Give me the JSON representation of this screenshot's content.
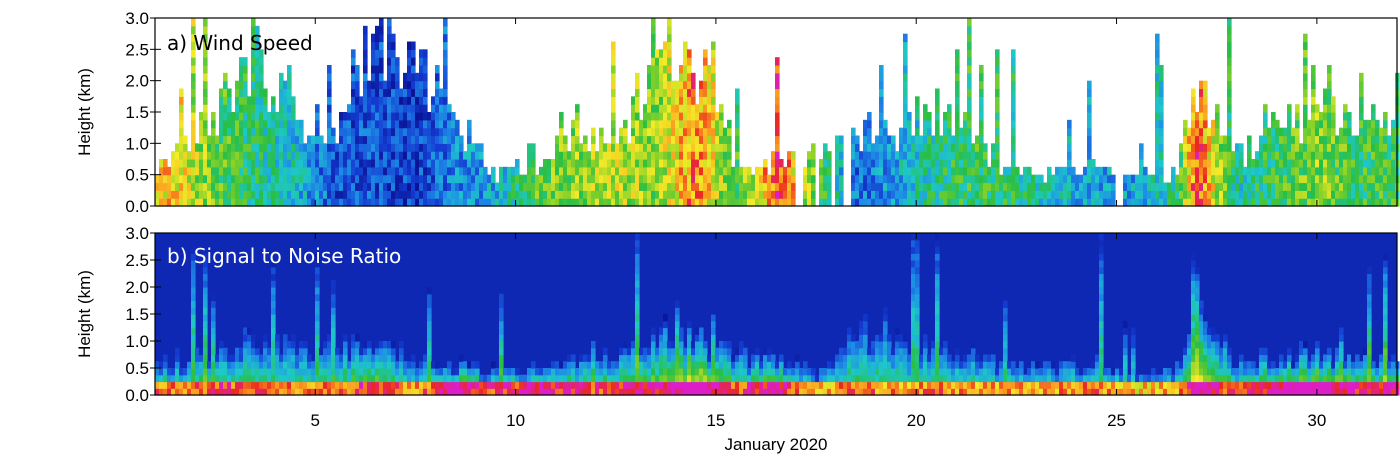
{
  "chart_data": {
    "type": "heatmap",
    "xlabel": "January 2020",
    "x_ticks": [
      5,
      10,
      15,
      20,
      25,
      30
    ],
    "xlim": [
      1,
      32
    ],
    "panels": [
      {
        "id": "wind",
        "label": "a) Wind Speed",
        "ylabel": "Height (km)",
        "ylim": [
          0,
          3
        ],
        "y_ticks": [
          "0.0",
          "0.5",
          "1.0",
          "1.5",
          "2.0",
          "2.5",
          "3.0"
        ],
        "colormap": "rainbow",
        "data_gaps_day": [
          [
            17.0,
            17.15
          ],
          [
            17.5,
            17.6
          ],
          [
            17.85,
            17.95
          ],
          [
            18.15,
            18.35
          ],
          [
            25.0,
            25.2
          ]
        ],
        "grid": [
          {
            "x": 1.5,
            "top_km": 0.7,
            "level": 0.75
          },
          {
            "x": 2.5,
            "top_km": 1.4,
            "level": 0.55
          },
          {
            "x": 3.5,
            "top_km": 2.4,
            "level": 0.45
          },
          {
            "x": 4.5,
            "top_km": 1.3,
            "level": 0.35
          },
          {
            "x": 5.5,
            "top_km": 1.2,
            "level": 0.15
          },
          {
            "x": 6.5,
            "top_km": 2.9,
            "level": 0.15
          },
          {
            "x": 7.5,
            "top_km": 2.0,
            "level": 0.1
          },
          {
            "x": 8.5,
            "top_km": 1.5,
            "level": 0.25
          },
          {
            "x": 9.5,
            "top_km": 0.4,
            "level": 0.3
          },
          {
            "x": 10.5,
            "top_km": 0.6,
            "level": 0.55
          },
          {
            "x": 11.5,
            "top_km": 1.2,
            "level": 0.6
          },
          {
            "x": 12.5,
            "top_km": 0.8,
            "level": 0.65
          },
          {
            "x": 13.5,
            "top_km": 2.5,
            "level": 0.6
          },
          {
            "x": 14.5,
            "top_km": 2.3,
            "level": 0.85
          },
          {
            "x": 15.5,
            "top_km": 0.6,
            "level": 0.5
          },
          {
            "x": 16.5,
            "top_km": 0.6,
            "level": 0.9
          },
          {
            "x": 18.5,
            "top_km": 1.0,
            "level": 0.2
          },
          {
            "x": 19.5,
            "top_km": 1.1,
            "level": 0.3
          },
          {
            "x": 20.5,
            "top_km": 1.5,
            "level": 0.45
          },
          {
            "x": 21.5,
            "top_km": 1.0,
            "level": 0.5
          },
          {
            "x": 22.5,
            "top_km": 0.5,
            "level": 0.45
          },
          {
            "x": 23.5,
            "top_km": 0.5,
            "level": 0.35
          },
          {
            "x": 24.5,
            "top_km": 0.5,
            "level": 0.3
          },
          {
            "x": 25.5,
            "top_km": 0.4,
            "level": 0.3
          },
          {
            "x": 26.5,
            "top_km": 0.5,
            "level": 0.45
          },
          {
            "x": 27.0,
            "top_km": 1.9,
            "level": 0.9
          },
          {
            "x": 28.0,
            "top_km": 0.7,
            "level": 0.4
          },
          {
            "x": 29.0,
            "top_km": 1.2,
            "level": 0.5
          },
          {
            "x": 30.0,
            "top_km": 1.5,
            "level": 0.6
          },
          {
            "x": 31.0,
            "top_km": 1.2,
            "level": 0.5
          }
        ]
      },
      {
        "id": "snr",
        "label": "b) Signal to Noise Ratio",
        "ylabel": "Height (km)",
        "ylim": [
          0,
          3
        ],
        "y_ticks": [
          "0.0",
          "0.5",
          "1.0",
          "1.5",
          "2.0",
          "2.5",
          "3.0"
        ],
        "colormap": "rainbow",
        "background_level": 0.06,
        "grid": [
          {
            "x": 1.5,
            "top_km": 0.6,
            "level": 0.55
          },
          {
            "x": 2.5,
            "top_km": 0.7,
            "level": 0.6
          },
          {
            "x": 3.5,
            "top_km": 1.0,
            "level": 0.55
          },
          {
            "x": 4.5,
            "top_km": 0.9,
            "level": 0.5
          },
          {
            "x": 5.5,
            "top_km": 0.8,
            "level": 0.55
          },
          {
            "x": 6.5,
            "top_km": 0.9,
            "level": 0.65
          },
          {
            "x": 7.5,
            "top_km": 0.6,
            "level": 0.5
          },
          {
            "x": 8.5,
            "top_km": 0.5,
            "level": 0.7
          },
          {
            "x": 9.5,
            "top_km": 0.4,
            "level": 0.6
          },
          {
            "x": 10.5,
            "top_km": 0.5,
            "level": 0.65
          },
          {
            "x": 11.5,
            "top_km": 0.6,
            "level": 0.6
          },
          {
            "x": 12.5,
            "top_km": 0.6,
            "level": 0.6
          },
          {
            "x": 13.5,
            "top_km": 1.1,
            "level": 0.65
          },
          {
            "x": 14.5,
            "top_km": 1.1,
            "level": 0.8
          },
          {
            "x": 15.5,
            "top_km": 0.7,
            "level": 0.55
          },
          {
            "x": 16.5,
            "top_km": 0.6,
            "level": 0.7
          },
          {
            "x": 17.5,
            "top_km": 0.4,
            "level": 0.45
          },
          {
            "x": 18.5,
            "top_km": 1.1,
            "level": 0.55
          },
          {
            "x": 19.5,
            "top_km": 1.0,
            "level": 0.5
          },
          {
            "x": 20.5,
            "top_km": 0.8,
            "level": 0.55
          },
          {
            "x": 21.5,
            "top_km": 0.6,
            "level": 0.5
          },
          {
            "x": 22.5,
            "top_km": 0.5,
            "level": 0.5
          },
          {
            "x": 23.5,
            "top_km": 0.5,
            "level": 0.5
          },
          {
            "x": 24.5,
            "top_km": 0.5,
            "level": 0.55
          },
          {
            "x": 25.5,
            "top_km": 0.3,
            "level": 0.45
          },
          {
            "x": 26.5,
            "top_km": 0.5,
            "level": 0.5
          },
          {
            "x": 27.0,
            "top_km": 1.7,
            "level": 0.75
          },
          {
            "x": 28.0,
            "top_km": 0.6,
            "level": 0.55
          },
          {
            "x": 29.0,
            "top_km": 0.7,
            "level": 0.7
          },
          {
            "x": 30.0,
            "top_km": 0.7,
            "level": 0.75
          },
          {
            "x": 31.0,
            "top_km": 0.6,
            "level": 0.65
          }
        ]
      }
    ]
  }
}
